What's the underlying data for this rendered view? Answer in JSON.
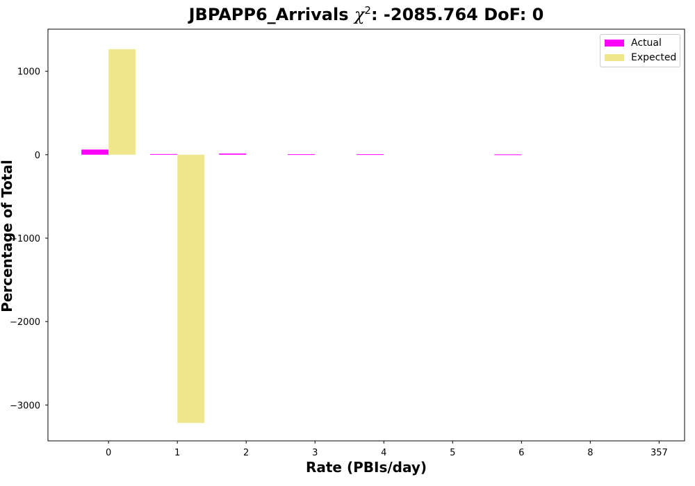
{
  "chart_data": {
    "type": "bar",
    "title_prefix": "JBPAPP6_Arrivals ",
    "title_symbol": "χ",
    "title_exp": "2",
    "title_suffix": ": -2085.764 DoF: 0",
    "xlabel": "Rate (PBIs/day)",
    "ylabel": "Percentage of Total",
    "categories": [
      "0",
      "1",
      "2",
      "3",
      "4",
      "5",
      "6",
      "8",
      "357"
    ],
    "series": [
      {
        "name": "Actual",
        "color": "#ff00ff",
        "values": [
          62,
          8,
          14,
          6,
          6,
          0,
          4,
          0,
          0
        ]
      },
      {
        "name": "Expected",
        "color": "#f0e68c",
        "values": [
          1265,
          -3215,
          0,
          0,
          0,
          0,
          0,
          0,
          0
        ]
      }
    ],
    "ylim": [
      -3430,
      1505
    ],
    "yticks": [
      1000,
      0,
      -1000,
      -2000,
      -3000
    ],
    "ytick_labels": [
      "1000",
      "0",
      "−1000",
      "−2000",
      "−3000"
    ],
    "grid": false,
    "legend_position": "top-right"
  }
}
